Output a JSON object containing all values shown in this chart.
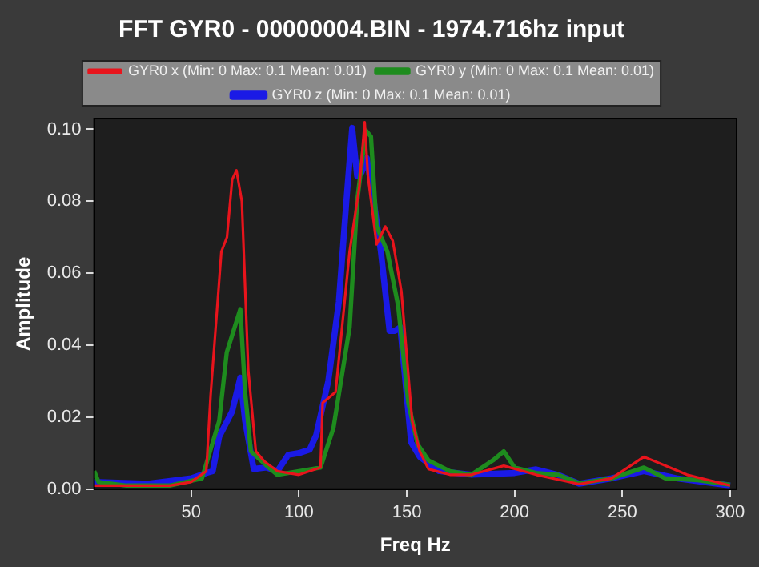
{
  "chart_data": {
    "type": "line",
    "title": "FFT GYR0 - 00000004.BIN - 1974.716hz input",
    "xlabel": "Freq Hz",
    "ylabel": "Amplitude",
    "xlim": [
      5,
      303
    ],
    "xticks": [
      50,
      100,
      150,
      200,
      250,
      300
    ],
    "ylim": [
      0,
      0.103
    ],
    "yticks": [
      {
        "value": 0,
        "label": "0.00"
      },
      {
        "value": 0.02,
        "label": "0.02"
      },
      {
        "value": 0.04,
        "label": "0.04"
      },
      {
        "value": 0.06,
        "label": "0.06"
      },
      {
        "value": 0.08,
        "label": "0.08"
      },
      {
        "value": 0.1,
        "label": "0.10"
      }
    ],
    "grid": false,
    "legend": "top",
    "marker": "none",
    "line_style": "solid",
    "series": [
      {
        "name": "GYR0 x (Min: 0 Max: 0.1 Mean: 0.01)",
        "color": "#e8141c",
        "x": [
          5,
          20,
          40,
          50,
          57,
          59,
          64,
          66.6,
          69,
          71,
          73.5,
          76.5,
          80,
          84,
          90,
          100,
          110,
          111,
          117,
          123.5,
          128,
          130.5,
          132,
          136,
          140,
          143.5,
          147.5,
          152.5,
          156,
          160,
          170,
          180,
          195,
          210,
          230,
          245,
          260,
          270,
          280,
          300
        ],
        "values": [
          0.001,
          0.001,
          0.001,
          0.002,
          0.005,
          0.026,
          0.066,
          0.07,
          0.086,
          0.0886,
          0.08,
          0.033,
          0.0105,
          0.0077,
          0.005,
          0.004,
          0.006,
          0.024,
          0.027,
          0.066,
          0.084,
          0.102,
          0.087,
          0.068,
          0.073,
          0.069,
          0.055,
          0.019,
          0.0105,
          0.0056,
          0.004,
          0.004,
          0.0065,
          0.004,
          0.0014,
          0.003,
          0.009,
          0.0065,
          0.004,
          0.001
        ]
      },
      {
        "name": "GYR0 y (Min: 0 Max: 0.1 Mean: 0.01)",
        "color": "#1e8c1e",
        "x": [
          5,
          7,
          20,
          40,
          55,
          63,
          66.5,
          72.8,
          75,
          77.7,
          85,
          90,
          100,
          110,
          116,
          123.5,
          127,
          131,
          133.4,
          136,
          141,
          146,
          150.7,
          155,
          160,
          170,
          180,
          190,
          195,
          200,
          210,
          220,
          230,
          245,
          260,
          270,
          285,
          300
        ],
        "values": [
          0.005,
          0.002,
          0.001,
          0.001,
          0.003,
          0.019,
          0.038,
          0.05,
          0.027,
          0.0105,
          0.0065,
          0.004,
          0.005,
          0.006,
          0.017,
          0.045,
          0.08,
          0.0997,
          0.098,
          0.073,
          0.066,
          0.051,
          0.024,
          0.0125,
          0.008,
          0.005,
          0.004,
          0.008,
          0.0105,
          0.006,
          0.0045,
          0.004,
          0.0016,
          0.003,
          0.006,
          0.003,
          0.0025,
          0.0012
        ]
      },
      {
        "name": "GYR0 z (Min: 0 Max: 0.1 Mean: 0.01)",
        "color": "#1a1ae6",
        "x": [
          5,
          30,
          50,
          57,
          60,
          63,
          69,
          72.8,
          75,
          79,
          85,
          90,
          95,
          100,
          105,
          108,
          113.6,
          118.5,
          122,
          124.7,
          127,
          129,
          131.5,
          134.7,
          138,
          142,
          144.5,
          147,
          152,
          156,
          165,
          180,
          200,
          210,
          220,
          230,
          245,
          260,
          275,
          300
        ],
        "values": [
          0.002,
          0.0015,
          0.003,
          0.0045,
          0.005,
          0.0146,
          0.0216,
          0.031,
          0.019,
          0.0056,
          0.006,
          0.005,
          0.0095,
          0.01,
          0.011,
          0.015,
          0.03,
          0.052,
          0.08,
          0.1004,
          0.087,
          0.088,
          0.092,
          0.08,
          0.066,
          0.044,
          0.044,
          0.045,
          0.013,
          0.009,
          0.005,
          0.004,
          0.0045,
          0.0055,
          0.004,
          0.0015,
          0.003,
          0.005,
          0.003,
          0.001
        ]
      }
    ]
  }
}
